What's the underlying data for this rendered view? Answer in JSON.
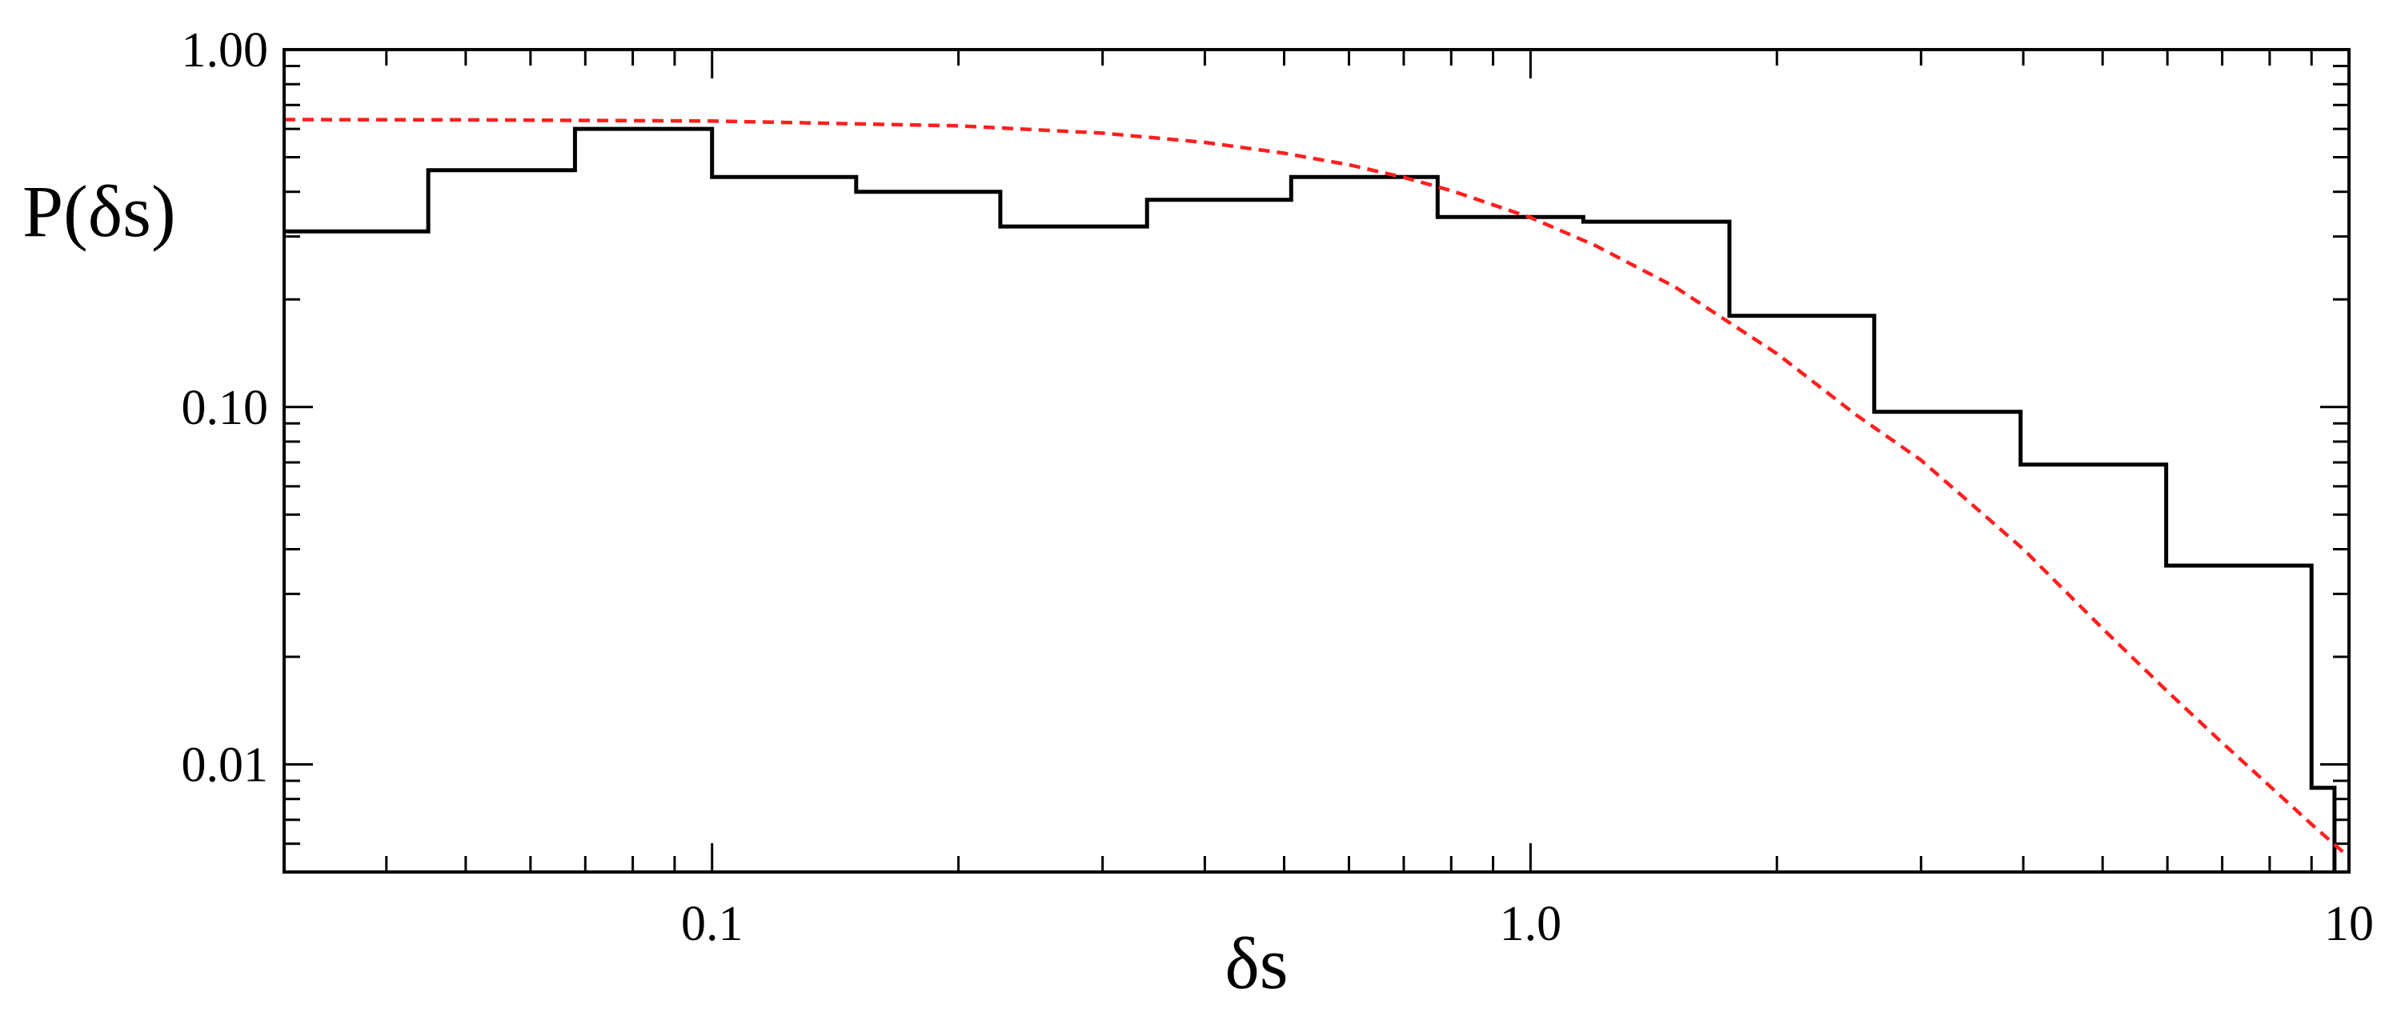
{
  "chart_data": {
    "type": "line",
    "title": "",
    "xlabel": "δs",
    "ylabel": "P(δs)",
    "x_scale": "log",
    "y_scale": "log",
    "xlim": [
      0.03,
      10
    ],
    "ylim": [
      0.005,
      1.0
    ],
    "grid": false,
    "legend": "none",
    "x_tick_labels": [
      {
        "value": 0.1,
        "label": "0.1"
      },
      {
        "value": 1.0,
        "label": "1.0"
      },
      {
        "value": 10,
        "label": "10"
      }
    ],
    "y_tick_labels": [
      {
        "value": 1.0,
        "label": "1.00"
      },
      {
        "value": 0.1,
        "label": "0.10"
      },
      {
        "value": 0.01,
        "label": "0.01"
      }
    ],
    "series": [
      {
        "kind": "step-histogram",
        "color": "#000000",
        "bins": [
          {
            "x0": 0.03,
            "x1": 0.045,
            "y": 0.31
          },
          {
            "x0": 0.045,
            "x1": 0.068,
            "y": 0.46
          },
          {
            "x0": 0.068,
            "x1": 0.1,
            "y": 0.6
          },
          {
            "x0": 0.1,
            "x1": 0.15,
            "y": 0.44
          },
          {
            "x0": 0.15,
            "x1": 0.225,
            "y": 0.4
          },
          {
            "x0": 0.225,
            "x1": 0.34,
            "y": 0.32
          },
          {
            "x0": 0.34,
            "x1": 0.51,
            "y": 0.38
          },
          {
            "x0": 0.51,
            "x1": 0.77,
            "y": 0.44
          },
          {
            "x0": 0.77,
            "x1": 1.16,
            "y": 0.34
          },
          {
            "x0": 1.16,
            "x1": 1.75,
            "y": 0.33
          },
          {
            "x0": 1.75,
            "x1": 2.63,
            "y": 0.18
          },
          {
            "x0": 2.63,
            "x1": 3.97,
            "y": 0.097
          },
          {
            "x0": 3.97,
            "x1": 5.98,
            "y": 0.069
          },
          {
            "x0": 5.98,
            "x1": 9.0,
            "y": 0.036
          },
          {
            "x0": 9.0,
            "x1": 9.6,
            "y": 0.0086
          }
        ]
      },
      {
        "kind": "dashed-curve",
        "color": "#ff1f1f",
        "x": [
          0.03,
          0.05,
          0.1,
          0.2,
          0.3,
          0.4,
          0.5,
          0.6,
          0.7,
          0.8,
          1.0,
          1.2,
          1.5,
          2.0,
          2.5,
          3.0,
          4.0,
          5.0,
          6.0,
          7.0,
          8.0,
          9.0,
          10.0
        ],
        "y": [
          0.637,
          0.636,
          0.631,
          0.612,
          0.584,
          0.55,
          0.513,
          0.476,
          0.439,
          0.403,
          0.339,
          0.283,
          0.217,
          0.141,
          0.095,
          0.071,
          0.04,
          0.024,
          0.016,
          0.0115,
          0.0087,
          0.0068,
          0.0055
        ]
      }
    ]
  }
}
